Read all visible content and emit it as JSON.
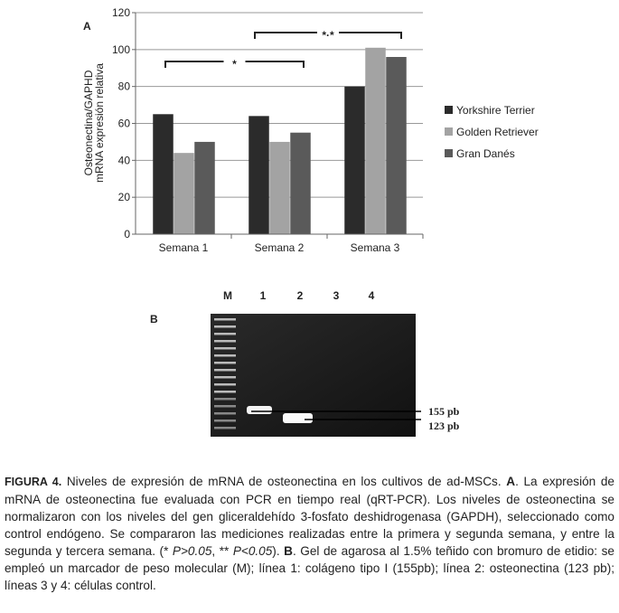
{
  "chart_data": {
    "type": "bar",
    "panel_label": "A",
    "ylabel": [
      "Osteonectina/GAPHD",
      "mRNA expresión relativa"
    ],
    "categories": [
      "Semana 1",
      "Semana 2",
      "Semana 3"
    ],
    "series": [
      {
        "name": "Yorkshire Terrier",
        "color": "#2b2b2b",
        "values": [
          65,
          64,
          80
        ]
      },
      {
        "name": "Golden Retriever",
        "color": "#a3a3a3",
        "values": [
          44,
          50,
          101
        ]
      },
      {
        "name": "Gran Danés",
        "color": "#5a5a5a",
        "values": [
          50,
          55,
          96
        ]
      }
    ],
    "ylim": [
      0,
      120
    ],
    "yticks": [
      0,
      20,
      40,
      60,
      80,
      100,
      120
    ],
    "grid": true,
    "legend": "right",
    "annotations": [
      "*",
      "*·*"
    ]
  },
  "gel": {
    "panel_label": "B",
    "lanes": [
      "M",
      "1",
      "2",
      "3",
      "4"
    ],
    "band_labels": [
      "155 pb",
      "123 pb"
    ]
  },
  "caption": {
    "parts": [
      {
        "text": "FIGURA 4.",
        "style": "label"
      },
      {
        "text": " Niveles de expresión de mRNA de osteonectina en los cultivos de ad-MSCs. ",
        "style": "normal"
      },
      {
        "text": "A",
        "style": "bold"
      },
      {
        "text": ". La expresión de mRNA de osteonectina fue evaluada con PCR en tiempo real (qRT-PCR). Los niveles de osteonectina se normalizaron con los niveles del gen gliceraldehído 3-fosfato deshidrogenasa (GAPDH), seleccionado como control endógeno. Se compararon las mediciones realizadas entre la primera y segunda semana, y entre la segunda y tercera semana. (* ",
        "style": "normal"
      },
      {
        "text": "P>0.05",
        "style": "italic"
      },
      {
        "text": ", ** ",
        "style": "normal"
      },
      {
        "text": "P<0.05",
        "style": "italic"
      },
      {
        "text": "). ",
        "style": "normal"
      },
      {
        "text": "B",
        "style": "bold"
      },
      {
        "text": ". Gel de agarosa al 1.5% teñido con bromuro de etidio: se empleó un marcador de peso molecular (M); línea 1: colágeno tipo I (155pb); línea 2: osteonectina (123 pb); líneas 3 y 4: células control.",
        "style": "normal"
      }
    ]
  }
}
